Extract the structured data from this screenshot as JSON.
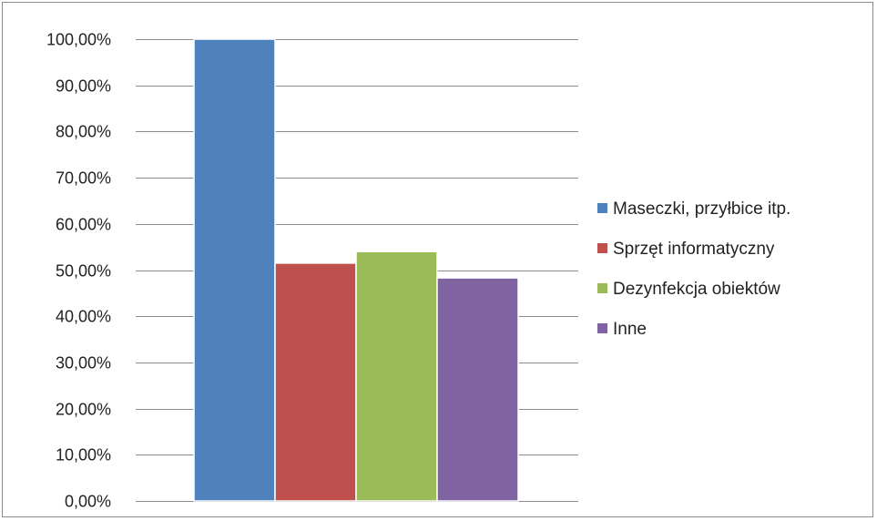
{
  "chart_data": {
    "type": "bar",
    "title": "",
    "xlabel": "",
    "ylabel": "",
    "ylim": [
      0,
      100
    ],
    "yticks": [
      0,
      10,
      20,
      30,
      40,
      50,
      60,
      70,
      80,
      90,
      100
    ],
    "ytick_labels": [
      "0,00%",
      "10,00%",
      "20,00%",
      "30,00%",
      "40,00%",
      "50,00%",
      "60,00%",
      "70,00%",
      "80,00%",
      "90,00%",
      "100,00%"
    ],
    "grid": true,
    "legend_position": "right",
    "series": [
      {
        "name": "Maseczki, przyłbice itp.",
        "value": 100,
        "color": "#4F81BD"
      },
      {
        "name": "Sprzęt informatyczny",
        "value": 51.5,
        "color": "#C0504D"
      },
      {
        "name": "Dezynfekcja obiektów",
        "value": 54,
        "color": "#9BBB59"
      },
      {
        "name": "Inne",
        "value": 48.3,
        "color": "#8064A2"
      }
    ]
  }
}
